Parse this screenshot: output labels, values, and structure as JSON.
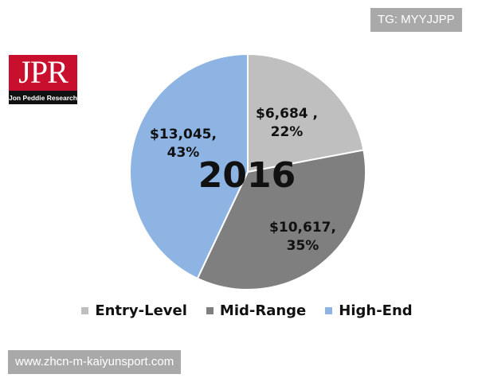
{
  "watermark_top": "TG: MYYJJPP",
  "watermark_bottom": "www.zhcn-m-kaiyunsport.com",
  "logo": {
    "mark": "JPR",
    "name": "Jon Peddie Research"
  },
  "chart_data": {
    "type": "pie",
    "title": "2016",
    "categories": [
      "Entry-Level",
      "Mid-Range",
      "High-End"
    ],
    "values": [
      6684,
      10617,
      13045
    ],
    "percents": [
      22,
      35,
      43
    ],
    "data_labels": [
      "$6,684 ,\n22%",
      "$10,617,\n35%",
      "$13,045,\n43%"
    ],
    "colors": [
      "#bfbfbf",
      "#7f7f7f",
      "#8eb4e3"
    ],
    "start_angle": "12 o'clock",
    "direction": "clockwise",
    "legend_position": "bottom"
  }
}
